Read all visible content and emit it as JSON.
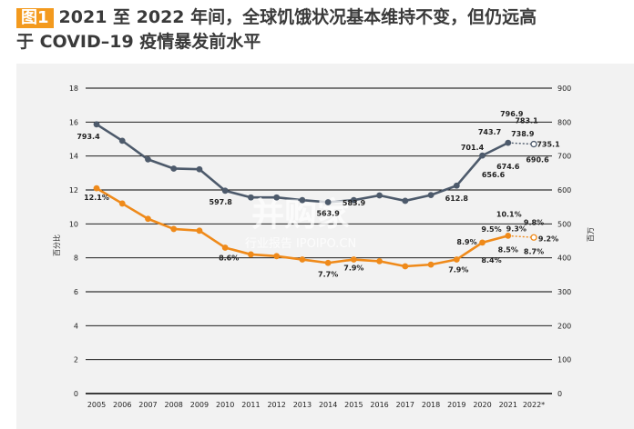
{
  "title": {
    "badge": "图1",
    "line1": "2021 至 2022 年间，全球饥饿状况基本维持不变，但仍远高",
    "line2": "于 COVID–19 疫情暴发前水平"
  },
  "chart_data": {
    "type": "line",
    "x": [
      "2005",
      "2006",
      "2007",
      "2008",
      "2009",
      "2010",
      "2011",
      "2012",
      "2013",
      "2014",
      "2015",
      "2016",
      "2017",
      "2018",
      "2019",
      "2020",
      "2021",
      "2022*"
    ],
    "ylabel_left": "百分比",
    "ylabel_right": "百万",
    "ylim_left": [
      0,
      18
    ],
    "ylim_right": [
      0,
      900
    ],
    "left_ticks": [
      0,
      2,
      4,
      6,
      8,
      10,
      12,
      14,
      16,
      18
    ],
    "right_ticks": [
      0,
      100,
      200,
      300,
      400,
      500,
      600,
      700,
      800,
      900
    ],
    "grid": true,
    "series": [
      {
        "axis": "right",
        "color": "#4d5a6b",
        "values": [
          793.4,
          745,
          690,
          663,
          661,
          597.8,
          578,
          578,
          570,
          563.9,
          570,
          583.9,
          568,
          585,
          612.8,
          701.4,
          738.9,
          735.1
        ],
        "projected_from_index": 16
      },
      {
        "axis": "left",
        "color": "#ef8a1a",
        "values": [
          12.1,
          11.2,
          10.3,
          9.7,
          9.6,
          8.6,
          8.2,
          8.1,
          7.9,
          7.7,
          7.9,
          7.8,
          7.5,
          7.6,
          7.9,
          8.9,
          9.3,
          9.2
        ],
        "projected_from_index": 16
      }
    ],
    "annotations": [
      {
        "text": "793.4",
        "series": 0,
        "index": 0,
        "dx": -9,
        "dy": 16
      },
      {
        "text": "597.8",
        "series": 0,
        "index": 5,
        "dx": -5,
        "dy": 15
      },
      {
        "text": "563.9",
        "series": 0,
        "index": 9,
        "dx": 0,
        "dy": 15
      },
      {
        "text": "583.9",
        "series": 0,
        "index": 11,
        "dx": -28,
        "dy": 11
      },
      {
        "text": "612.8",
        "series": 0,
        "index": 14,
        "dx": 0,
        "dy": 17
      },
      {
        "text": "701.4",
        "series": 0,
        "index": 15,
        "dx": -11,
        "dy": -6
      },
      {
        "text": "743.7",
        "series": 0,
        "index": 15,
        "dx": 8,
        "dy": -23
      },
      {
        "text": "656.6",
        "series": 0,
        "index": 15,
        "dx": 12,
        "dy": 24
      },
      {
        "text": "796.9",
        "series": 0,
        "index": 16,
        "dx": 4,
        "dy": -29
      },
      {
        "text": "738.9",
        "series": 0,
        "index": 16,
        "dx": 16,
        "dy": -7
      },
      {
        "text": "674.6",
        "series": 0,
        "index": 16,
        "dx": 0,
        "dy": 29
      },
      {
        "text": "783.1",
        "series": 0,
        "index": 17,
        "dx": -8,
        "dy": -23
      },
      {
        "text": "735.1",
        "series": 0,
        "index": 17,
        "dx": 16,
        "dy": 3
      },
      {
        "text": "690.6",
        "series": 0,
        "index": 17,
        "dx": 4,
        "dy": 20
      },
      {
        "text": "12.1%",
        "series": 1,
        "index": 0,
        "dx": 0,
        "dy": 13
      },
      {
        "text": "8.6%",
        "series": 1,
        "index": 5,
        "dx": 4,
        "dy": 14
      },
      {
        "text": "7.7%",
        "series": 1,
        "index": 9,
        "dx": 0,
        "dy": 15
      },
      {
        "text": "7.9%",
        "series": 1,
        "index": 10,
        "dx": 0,
        "dy": 12
      },
      {
        "text": "7.9%",
        "series": 1,
        "index": 14,
        "dx": 2,
        "dy": 14
      },
      {
        "text": "8.9%",
        "series": 1,
        "index": 15,
        "dx": -17,
        "dy": 2
      },
      {
        "text": "9.5%",
        "series": 1,
        "index": 15,
        "dx": 10,
        "dy": -12
      },
      {
        "text": "8.4%",
        "series": 1,
        "index": 15,
        "dx": 10,
        "dy": 22
      },
      {
        "text": "10.1%",
        "series": 1,
        "index": 16,
        "dx": 1,
        "dy": -21
      },
      {
        "text": "9.3%",
        "series": 1,
        "index": 16,
        "dx": 9,
        "dy": -5
      },
      {
        "text": "8.5%",
        "series": 1,
        "index": 16,
        "dx": 0,
        "dy": 18
      },
      {
        "text": "9.8%",
        "series": 1,
        "index": 17,
        "dx": 0,
        "dy": -14
      },
      {
        "text": "9.2%",
        "series": 1,
        "index": 17,
        "dx": 16,
        "dy": 4
      },
      {
        "text": "8.7%",
        "series": 1,
        "index": 17,
        "dx": 0,
        "dy": 18
      }
    ]
  },
  "watermark": {
    "line1": "并购家",
    "line2": "行业报告 IPOIPO.CN"
  }
}
